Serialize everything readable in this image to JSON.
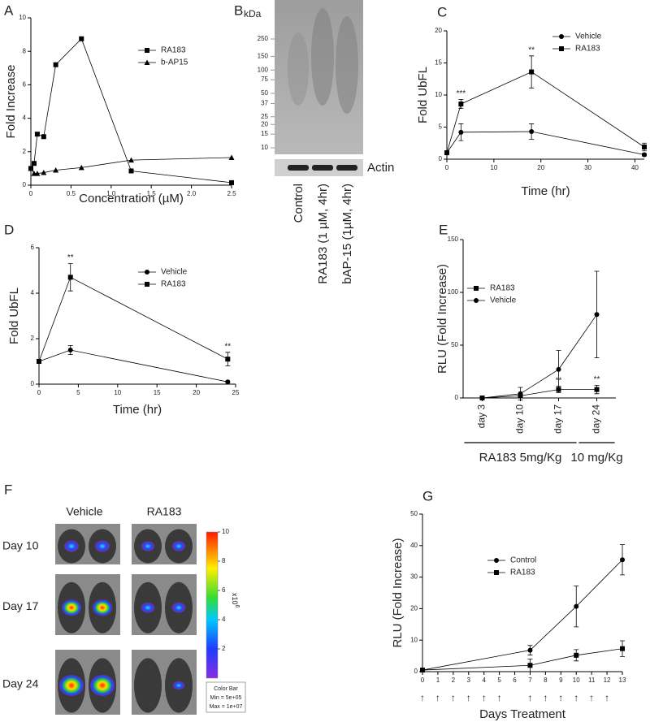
{
  "chart_data": [
    {
      "panel": "A",
      "type": "line",
      "xlabel": "Concentration (µM)",
      "ylabel": "Fold Increase",
      "x": [
        0,
        0.04,
        0.08,
        0.16,
        0.31,
        0.63,
        1.25,
        2.5
      ],
      "series": [
        {
          "name": "RA183",
          "marker": "square",
          "color": "#000000",
          "values": [
            1,
            1.3,
            3.05,
            2.9,
            7.2,
            8.75,
            0.85,
            0.15
          ]
        },
        {
          "name": "b-AP15",
          "marker": "triangle",
          "color": "#000000",
          "values": [
            1,
            0.7,
            0.7,
            0.75,
            0.9,
            1.05,
            1.5,
            1.65
          ]
        }
      ],
      "xlim": [
        0,
        2.5
      ],
      "xticks": [
        0,
        0.5,
        {
          "value": 1,
          "label": "1.0"
        },
        1.5,
        {
          "value": 2,
          "label": "2.0"
        },
        2.5
      ],
      "ylim": [
        0,
        10
      ],
      "yticks": [
        0,
        2,
        4,
        6,
        8,
        10
      ]
    },
    {
      "panel": "B",
      "type": "blot",
      "unit": "kDa",
      "markers": [
        250,
        150,
        100,
        75,
        50,
        37,
        25,
        20,
        15,
        10
      ],
      "ylim": [
        10,
        250
      ],
      "log_scale": true,
      "lanes": [
        "Control",
        "RA183 (1 µM, 4hr)",
        "bAP-15 (1µM, 4hr)"
      ],
      "loading_control": "Actin"
    },
    {
      "panel": "C",
      "type": "line",
      "xlabel": "Time (hr)",
      "ylabel": "Fold UbFL",
      "x": [
        0,
        3,
        18,
        42
      ],
      "series": [
        {
          "name": "Vehicle",
          "marker": "circle",
          "color": "#000000",
          "values": [
            1,
            4.2,
            4.3,
            0.7
          ],
          "errors": [
            0,
            1.3,
            1.2,
            0.2
          ]
        },
        {
          "name": "RA183",
          "marker": "square",
          "color": "#000000",
          "values": [
            1,
            8.6,
            13.6,
            1.9
          ],
          "errors": [
            0,
            0.7,
            2.5,
            0.6
          ]
        }
      ],
      "annotations": [
        {
          "text": "***",
          "x": 3,
          "series": "RA183"
        },
        {
          "text": "**",
          "x": 18,
          "series": "RA183"
        }
      ],
      "xlim": [
        0,
        42
      ],
      "xticks": [
        0,
        10,
        20,
        30,
        40
      ],
      "ylim": [
        0,
        20
      ],
      "yticks": [
        0,
        5,
        10,
        15,
        20
      ]
    },
    {
      "panel": "D",
      "type": "line",
      "xlabel": "Time (hr)",
      "ylabel": "Fold UbFL",
      "x": [
        0,
        4,
        24
      ],
      "series": [
        {
          "name": "Vehicle",
          "marker": "circle",
          "color": "#000000",
          "values": [
            1,
            1.5,
            0.1
          ],
          "errors": [
            0,
            0.2,
            0
          ]
        },
        {
          "name": "RA183",
          "marker": "square",
          "color": "#000000",
          "values": [
            1,
            4.7,
            1.1
          ],
          "errors": [
            0,
            0.6,
            0.3
          ]
        }
      ],
      "annotations": [
        {
          "text": "**",
          "x": 4,
          "series": "RA183"
        },
        {
          "text": "**",
          "x": 24,
          "series": "RA183"
        }
      ],
      "xlim": [
        0,
        25
      ],
      "xticks": [
        0,
        5,
        10,
        15,
        20,
        25
      ],
      "ylim": [
        0,
        6
      ],
      "yticks": [
        0,
        2,
        4,
        6
      ]
    },
    {
      "panel": "E",
      "type": "line",
      "ylabel": "RLU (Fold Increase)",
      "categories": [
        "day 3",
        "day 10",
        "day 17",
        "day 24"
      ],
      "series": [
        {
          "name": "RA183",
          "marker": "square",
          "color": "#000000",
          "values": [
            0,
            2,
            8,
            8
          ],
          "errors": [
            0,
            2,
            3,
            4
          ]
        },
        {
          "name": "Vehicle",
          "marker": "circle",
          "color": "#000000",
          "values": [
            0,
            4,
            27,
            79
          ],
          "errors": [
            0,
            6,
            18,
            41
          ]
        }
      ],
      "annotations": [
        {
          "text": "**",
          "category": "day 17",
          "series": "RA183"
        },
        {
          "text": "**",
          "category": "day 24",
          "series": "RA183"
        }
      ],
      "dosing": [
        {
          "label": "RA183 5mg/Kg",
          "from": "day 3",
          "to": "day 17"
        },
        {
          "label": "10 mg/Kg",
          "from": "day 24",
          "to": "day 24"
        }
      ],
      "ylim": [
        0,
        150
      ],
      "yticks": [
        0,
        50,
        100,
        150
      ]
    },
    {
      "panel": "F",
      "type": "imaging",
      "columns": [
        "Vehicle",
        "RA183"
      ],
      "rows": [
        "Day 10",
        "Day 17",
        "Day 24"
      ],
      "colorbar": {
        "ticks": [
          2,
          4,
          6,
          8,
          10
        ],
        "lim": [
          0,
          10
        ],
        "multiplier": "x10",
        "exponent": "6",
        "title": "Color Bar",
        "min_label": "Min = 5e+05",
        "max_label": "Max = 1e+07"
      }
    },
    {
      "panel": "G",
      "type": "line",
      "xlabel": "Days Treatment",
      "ylabel": "RLU (Fold Increase)",
      "x": [
        0,
        7,
        10,
        13
      ],
      "series": [
        {
          "name": "Control",
          "marker": "circle",
          "color": "#000000",
          "values": [
            0.5,
            6.8,
            20.7,
            35.5
          ],
          "errors": [
            0,
            1.5,
            6.5,
            4.8
          ]
        },
        {
          "name": "RA183",
          "marker": "square",
          "color": "#000000",
          "values": [
            0.5,
            2,
            5.2,
            7.3
          ],
          "errors": [
            0,
            2,
            1.8,
            2.5
          ]
        }
      ],
      "dose_days": [
        0,
        1,
        2,
        3,
        4,
        5,
        7,
        8,
        9,
        10,
        11,
        12
      ],
      "dose_marker": "↑",
      "xlim": [
        0,
        13
      ],
      "xticks": [
        0,
        1,
        2,
        3,
        4,
        5,
        6,
        7,
        8,
        9,
        10,
        11,
        12,
        13
      ],
      "ylim": [
        0,
        50
      ],
      "yticks": [
        0,
        10,
        20,
        30,
        40,
        50
      ]
    }
  ]
}
